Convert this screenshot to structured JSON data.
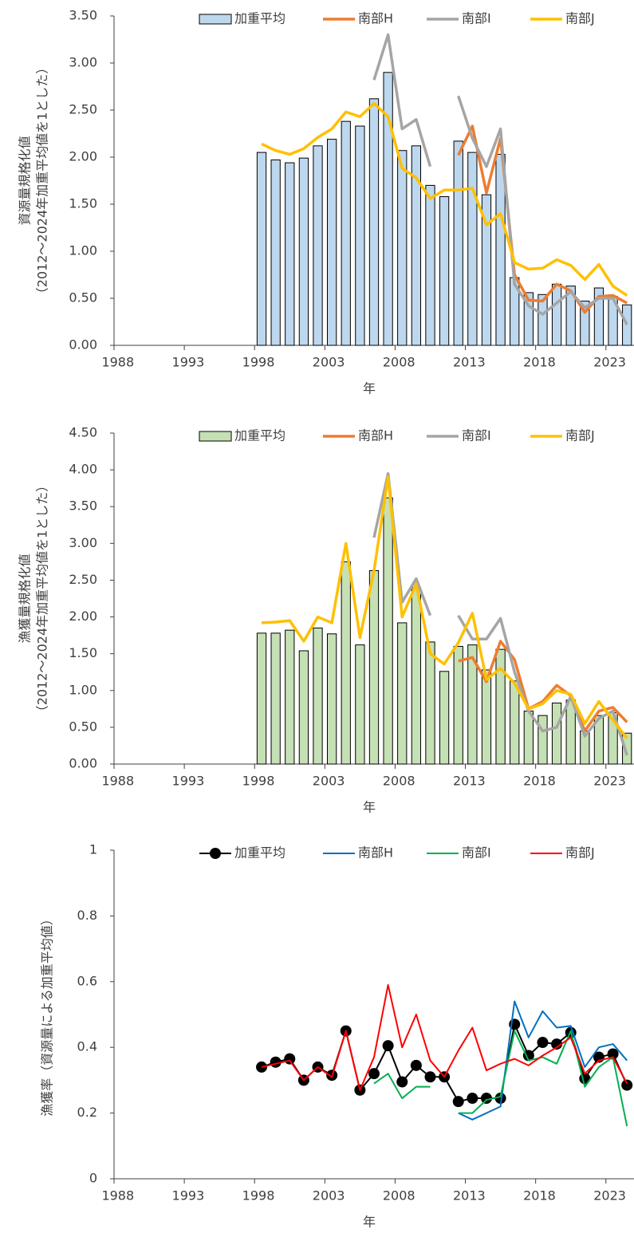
{
  "chart_data": [
    {
      "type": "bar",
      "ylabel": [
        "資源量規格化値",
        "（2012～2024年加重平均値を1とした）"
      ],
      "xlabel": "年",
      "x": [
        1998,
        1999,
        2000,
        2001,
        2002,
        2003,
        2004,
        2005,
        2006,
        2007,
        2008,
        2009,
        2010,
        2011,
        2012,
        2013,
        2014,
        2015,
        2016,
        2017,
        2018,
        2019,
        2020,
        2021,
        2022,
        2023,
        2024
      ],
      "xlim": [
        1987.5,
        2024.5
      ],
      "xticks": [
        1988,
        1993,
        1998,
        2003,
        2008,
        2013,
        2018,
        2023
      ],
      "ylim": [
        0,
        3.5
      ],
      "yticks": [
        {
          "value": 0,
          "label": "0.00"
        },
        {
          "value": 0.5,
          "label": "0.50"
        },
        {
          "value": 1,
          "label": "1.00"
        },
        {
          "value": 1.5,
          "label": "1.50"
        },
        {
          "value": 2,
          "label": "2.00"
        },
        {
          "value": 2.5,
          "label": "2.50"
        },
        {
          "value": 3,
          "label": "3.00"
        },
        {
          "value": 3.5,
          "label": "3.50"
        }
      ],
      "legend": "top",
      "series": [
        {
          "name": "加重平均",
          "type": "bar",
          "color": "#bdd7ee",
          "values": [
            2.05,
            1.97,
            1.94,
            1.99,
            2.12,
            2.19,
            2.38,
            2.33,
            2.62,
            2.9,
            2.07,
            2.12,
            1.7,
            1.58,
            2.17,
            2.05,
            1.6,
            2.03,
            0.72,
            0.56,
            0.54,
            0.65,
            0.63,
            0.47,
            0.61,
            0.52,
            0.43
          ]
        },
        {
          "name": "南部H",
          "type": "line",
          "color": "#ed7d31",
          "values": [
            null,
            null,
            null,
            null,
            null,
            null,
            null,
            null,
            null,
            null,
            null,
            null,
            null,
            null,
            2.02,
            2.33,
            1.62,
            2.2,
            0.75,
            0.48,
            0.47,
            0.65,
            0.58,
            0.35,
            0.52,
            0.53,
            0.45
          ]
        },
        {
          "name": "南部I",
          "type": "line",
          "color": "#a5a5a5",
          "values": [
            null,
            null,
            null,
            null,
            null,
            null,
            null,
            null,
            2.82,
            3.3,
            2.3,
            2.4,
            1.9,
            null,
            2.65,
            2.2,
            1.9,
            2.3,
            0.65,
            0.42,
            0.33,
            0.45,
            0.57,
            0.4,
            0.5,
            0.5,
            0.22
          ]
        },
        {
          "name": "南部J",
          "type": "line",
          "color": "#ffc000",
          "values": [
            2.14,
            2.07,
            2.03,
            2.09,
            2.21,
            2.3,
            2.48,
            2.43,
            2.57,
            2.43,
            1.88,
            1.78,
            1.56,
            1.65,
            1.65,
            1.67,
            1.28,
            1.4,
            0.88,
            0.81,
            0.82,
            0.91,
            0.85,
            0.7,
            0.86,
            0.63,
            0.53
          ]
        }
      ]
    },
    {
      "type": "bar",
      "ylabel": [
        "漁獲量規格化値",
        "（2012～2024年加重平均値を1とした）"
      ],
      "xlabel": "年",
      "x": [
        1998,
        1999,
        2000,
        2001,
        2002,
        2003,
        2004,
        2005,
        2006,
        2007,
        2008,
        2009,
        2010,
        2011,
        2012,
        2013,
        2014,
        2015,
        2016,
        2017,
        2018,
        2019,
        2020,
        2021,
        2022,
        2023,
        2024
      ],
      "xlim": [
        1987.5,
        2024.5
      ],
      "xticks": [
        1988,
        1993,
        1998,
        2003,
        2008,
        2013,
        2018,
        2023
      ],
      "ylim": [
        0,
        4.5
      ],
      "yticks": [
        {
          "value": 0,
          "label": "0.00"
        },
        {
          "value": 0.5,
          "label": "0.50"
        },
        {
          "value": 1,
          "label": "1.00"
        },
        {
          "value": 1.5,
          "label": "1.50"
        },
        {
          "value": 2,
          "label": "2.00"
        },
        {
          "value": 2.5,
          "label": "2.50"
        },
        {
          "value": 3,
          "label": "3.00"
        },
        {
          "value": 3.5,
          "label": "3.50"
        },
        {
          "value": 4,
          "label": "4.00"
        },
        {
          "value": 4.5,
          "label": "4.50"
        }
      ],
      "legend": "top",
      "series": [
        {
          "name": "加重平均",
          "type": "bar",
          "color": "#c5e0b4",
          "values": [
            1.78,
            1.78,
            1.82,
            1.54,
            1.85,
            1.77,
            2.75,
            1.62,
            2.63,
            3.62,
            1.92,
            2.4,
            1.66,
            1.26,
            1.6,
            1.62,
            1.28,
            1.56,
            1.13,
            0.72,
            0.66,
            0.83,
            0.87,
            0.45,
            0.66,
            0.7,
            0.42
          ]
        },
        {
          "name": "南部H",
          "type": "line",
          "color": "#ed7d31",
          "values": [
            null,
            null,
            null,
            null,
            null,
            null,
            null,
            null,
            null,
            null,
            null,
            null,
            null,
            null,
            1.4,
            1.45,
            1.12,
            1.67,
            1.42,
            0.75,
            0.85,
            1.07,
            0.93,
            0.45,
            0.72,
            0.77,
            0.57
          ]
        },
        {
          "name": "南部I",
          "type": "line",
          "color": "#a5a5a5",
          "values": [
            null,
            null,
            null,
            null,
            null,
            null,
            null,
            null,
            3.08,
            3.95,
            2.2,
            2.52,
            2.02,
            null,
            2.02,
            1.7,
            1.7,
            1.98,
            1.25,
            0.72,
            0.45,
            0.5,
            0.92,
            0.38,
            0.62,
            0.72,
            0.12
          ]
        },
        {
          "name": "南部J",
          "type": "line",
          "color": "#ffc000",
          "values": [
            1.92,
            1.93,
            1.95,
            1.67,
            2.0,
            1.92,
            3.0,
            1.72,
            2.63,
            3.9,
            2.0,
            2.45,
            1.5,
            1.36,
            1.65,
            2.05,
            1.15,
            1.3,
            1.1,
            0.75,
            0.82,
            1.0,
            0.95,
            0.55,
            0.85,
            0.6,
            0.35
          ]
        }
      ]
    },
    {
      "type": "line",
      "ylabel": [
        "漁獲率（資源量による加重平均値）"
      ],
      "xlabel": "年",
      "x": [
        1998,
        1999,
        2000,
        2001,
        2002,
        2003,
        2004,
        2005,
        2006,
        2007,
        2008,
        2009,
        2010,
        2011,
        2012,
        2013,
        2014,
        2015,
        2016,
        2017,
        2018,
        2019,
        2020,
        2021,
        2022,
        2023,
        2024
      ],
      "xlim": [
        1987.5,
        2024.5
      ],
      "xticks": [
        1988,
        1993,
        1998,
        2003,
        2008,
        2013,
        2018,
        2023
      ],
      "ylim": [
        0,
        1
      ],
      "yticks": [
        0,
        0.2,
        0.4,
        0.6,
        0.8,
        1
      ],
      "legend": "top",
      "series": [
        {
          "name": "加重平均",
          "type": "line",
          "marker": true,
          "color": "#000000",
          "values": [
            0.34,
            0.355,
            0.365,
            0.3,
            0.34,
            0.315,
            0.45,
            0.27,
            0.32,
            0.405,
            0.295,
            0.345,
            0.31,
            0.31,
            0.235,
            0.245,
            0.245,
            0.245,
            0.47,
            0.375,
            0.415,
            0.41,
            0.445,
            0.305,
            0.37,
            0.38,
            0.285
          ]
        },
        {
          "name": "南部H",
          "type": "line",
          "color": "#0070c0",
          "values": [
            null,
            null,
            null,
            null,
            null,
            null,
            null,
            null,
            null,
            null,
            null,
            null,
            null,
            null,
            0.2,
            0.18,
            0.2,
            0.22,
            0.54,
            0.43,
            0.51,
            0.46,
            0.465,
            0.34,
            0.4,
            0.41,
            0.36
          ]
        },
        {
          "name": "南部I",
          "type": "line",
          "color": "#00b050",
          "values": [
            null,
            null,
            null,
            null,
            null,
            null,
            null,
            null,
            0.29,
            0.32,
            0.245,
            0.28,
            0.28,
            null,
            0.2,
            0.2,
            0.24,
            0.25,
            0.45,
            0.36,
            0.37,
            0.35,
            0.45,
            0.28,
            0.34,
            0.37,
            0.16
          ]
        },
        {
          "name": "南部J",
          "type": "line",
          "color": "#ff0000",
          "values": [
            0.34,
            0.35,
            0.36,
            0.3,
            0.34,
            0.31,
            0.45,
            0.27,
            0.37,
            0.59,
            0.4,
            0.5,
            0.36,
            0.31,
            0.39,
            0.46,
            0.33,
            0.35,
            0.365,
            0.345,
            0.375,
            0.4,
            0.43,
            0.32,
            0.36,
            0.37,
            0.29
          ]
        }
      ]
    }
  ]
}
